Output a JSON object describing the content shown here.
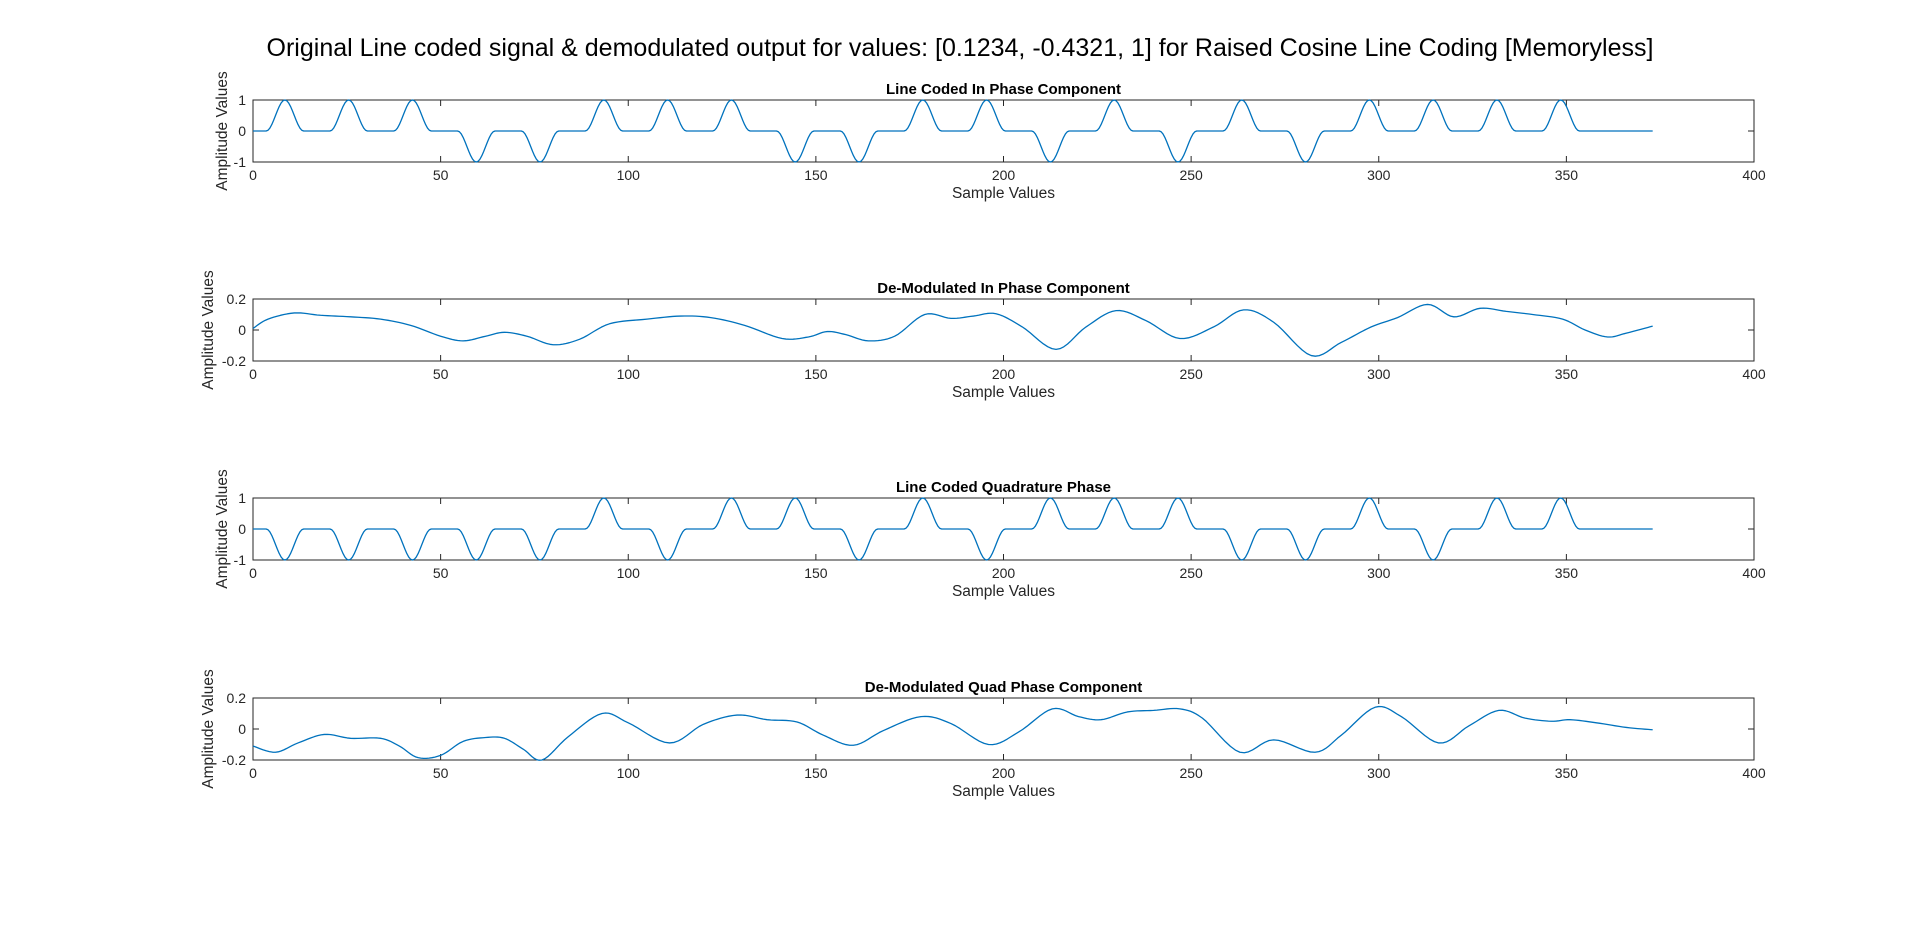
{
  "figure": {
    "title": "Original Line coded signal & demodulated output for values: [0.1234, -0.4321, 1] for Raised Cosine Line Coding [Memoryless]"
  },
  "colors": {
    "line": "#0072BD",
    "axis": "#262626"
  },
  "chart_data": [
    {
      "type": "line",
      "title": "Line Coded In Phase Component",
      "xlabel": "Sample Values",
      "ylabel": "Amplitude Values",
      "xlim": [
        0,
        400
      ],
      "ylim": [
        -1,
        1
      ],
      "xticks": [
        0,
        50,
        100,
        150,
        200,
        250,
        300,
        350,
        400
      ],
      "yticks": [
        -1,
        0,
        1
      ],
      "pulse_period": 17,
      "pulse_signs": [
        1,
        1,
        1,
        -1,
        -1,
        1,
        1,
        1,
        -1,
        -1,
        1,
        1,
        -1,
        1,
        -1,
        1,
        -1,
        1,
        1,
        1,
        1
      ],
      "signal_end": 373
    },
    {
      "type": "line",
      "title": "De-Modulated In Phase Component",
      "xlabel": "Sample Values",
      "ylabel": "Amplitude Values",
      "xlim": [
        0,
        400
      ],
      "ylim": [
        -0.2,
        0.2
      ],
      "xticks": [
        0,
        50,
        100,
        150,
        200,
        250,
        300,
        350,
        400
      ],
      "yticks": [
        -0.2,
        0,
        0.2
      ],
      "x": [
        0,
        4,
        11,
        18,
        26,
        34,
        42,
        50,
        56,
        62,
        67,
        73,
        80,
        87,
        95,
        105,
        114,
        122,
        131,
        141,
        148,
        153,
        158,
        164,
        171,
        179,
        186,
        192,
        198,
        205,
        214,
        222,
        230,
        238,
        247,
        256,
        264,
        272,
        282,
        290,
        298,
        305,
        313,
        320,
        327,
        334,
        341,
        349,
        355,
        361,
        366,
        373
      ],
      "y": [
        0.01,
        0.07,
        0.11,
        0.095,
        0.085,
        0.07,
        0.03,
        -0.04,
        -0.07,
        -0.04,
        -0.015,
        -0.04,
        -0.095,
        -0.06,
        0.04,
        0.07,
        0.09,
        0.08,
        0.03,
        -0.055,
        -0.045,
        -0.01,
        -0.03,
        -0.07,
        -0.04,
        0.1,
        0.075,
        0.09,
        0.105,
        0.02,
        -0.125,
        0.02,
        0.125,
        0.06,
        -0.055,
        0.02,
        0.13,
        0.05,
        -0.165,
        -0.08,
        0.02,
        0.08,
        0.165,
        0.085,
        0.14,
        0.12,
        0.1,
        0.07,
        0.0,
        -0.045,
        -0.02,
        0.025
      ]
    },
    {
      "type": "line",
      "title": "Line Coded Quadrature Phase",
      "xlabel": "Sample Values",
      "ylabel": "Amplitude Values",
      "xlim": [
        0,
        400
      ],
      "ylim": [
        -1,
        1
      ],
      "xticks": [
        0,
        50,
        100,
        150,
        200,
        250,
        300,
        350,
        400
      ],
      "yticks": [
        -1,
        0,
        1
      ],
      "pulse_period": 17,
      "pulse_signs": [
        -1,
        -1,
        -1,
        -1,
        -1,
        1,
        -1,
        1,
        1,
        -1,
        1,
        -1,
        1,
        1,
        1,
        -1,
        -1,
        1,
        -1,
        1,
        1
      ],
      "signal_end": 373
    },
    {
      "type": "line",
      "title": "De-Modulated Quad Phase Component",
      "xlabel": "Sample Values",
      "ylabel": "Amplitude Values",
      "xlim": [
        0,
        400
      ],
      "ylim": [
        -0.2,
        0.2
      ],
      "xticks": [
        0,
        50,
        100,
        150,
        200,
        250,
        300,
        350,
        400
      ],
      "yticks": [
        -0.2,
        0,
        0.2
      ],
      "x": [
        0,
        6,
        12,
        19,
        26,
        34,
        39,
        44,
        50,
        56,
        62,
        67,
        72,
        77,
        84,
        93,
        100,
        111,
        120,
        129,
        137,
        145,
        152,
        160,
        168,
        178,
        186,
        196,
        204,
        213,
        220,
        226,
        233,
        240,
        247,
        253,
        263,
        272,
        283,
        290,
        299,
        306,
        316,
        324,
        332,
        339,
        346,
        351,
        358,
        366,
        373
      ],
      "y": [
        -0.11,
        -0.15,
        -0.09,
        -0.035,
        -0.06,
        -0.06,
        -0.11,
        -0.185,
        -0.17,
        -0.08,
        -0.055,
        -0.06,
        -0.13,
        -0.2,
        -0.05,
        0.1,
        0.04,
        -0.09,
        0.03,
        0.09,
        0.06,
        0.045,
        -0.04,
        -0.105,
        -0.01,
        0.08,
        0.035,
        -0.1,
        -0.02,
        0.13,
        0.08,
        0.06,
        0.11,
        0.12,
        0.13,
        0.07,
        -0.15,
        -0.07,
        -0.15,
        -0.04,
        0.14,
        0.08,
        -0.09,
        0.02,
        0.12,
        0.07,
        0.05,
        0.06,
        0.04,
        0.01,
        -0.005
      ]
    }
  ]
}
